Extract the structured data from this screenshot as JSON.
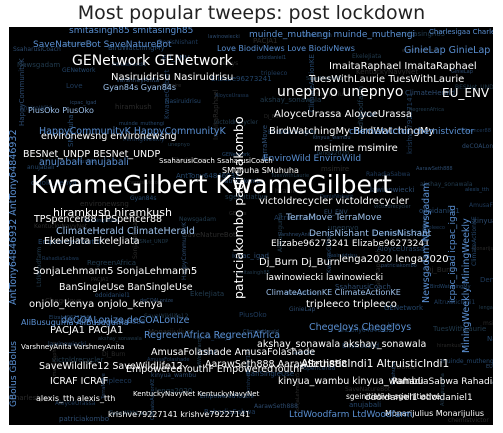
{
  "title": "Most popular tweeps: post lockdown",
  "colors": {
    "background": "#000000",
    "white": "#ffffff",
    "blue": "#5a8fd1",
    "light_blue": "#9cc0ea",
    "teal": "#4aa3a3"
  },
  "words": [
    {
      "text": "KwameGilbert KwameGilbert",
      "color": "white"
    },
    {
      "text": "GENetwork GENetwork",
      "color": "white"
    },
    {
      "text": "hiramkush hiramkush",
      "color": "white"
    },
    {
      "text": "unepnyo unepnyo",
      "color": "white"
    },
    {
      "text": "patriciakombo patriciakombo",
      "color": "white"
    },
    {
      "text": "AltruisticIndi1 AltruisticIndi1",
      "color": "white"
    },
    {
      "text": "Nasiruidrisu Nasiruidrisu",
      "color": "white"
    },
    {
      "text": "ImaitaRaphael ImaitaRaphael",
      "color": "white"
    },
    {
      "text": "TuesWithLaurie TuesWithLaurie",
      "color": "white"
    },
    {
      "text": "EU_ENV EU_ENV",
      "color": "white"
    },
    {
      "text": "AloyceUrassa AloyceUrassa",
      "color": "white"
    },
    {
      "text": "BirdWatchingMy BirdWatchingMy",
      "color": "white"
    },
    {
      "text": "msimire msimire",
      "color": "white"
    },
    {
      "text": "victoldrecycler victoldrecycler",
      "color": "white"
    },
    {
      "text": "TerraMove TerraMove",
      "color": "light_blue"
    },
    {
      "text": "DenisNishant DenisNishant",
      "color": "light_blue"
    },
    {
      "text": "Elizabe96273241 Elizabe96273241",
      "color": "white"
    },
    {
      "text": "Dj_Burn Dj_Burn",
      "color": "white"
    },
    {
      "text": "lenga2020 lenga2020",
      "color": "white"
    },
    {
      "text": "lawinowiecki lawinowiecki",
      "color": "white"
    },
    {
      "text": "tripleeco tripleeco",
      "color": "white"
    },
    {
      "text": "ClimateActionKE ClimateActionKE",
      "color": "light_blue"
    },
    {
      "text": "ChegeJoys ChegeJoys",
      "color": "blue"
    },
    {
      "text": "akshay_sonawala akshay_sonawala",
      "color": "white"
    },
    {
      "text": "kinyua_wambu kinyua_wambu",
      "color": "white"
    },
    {
      "text": "RahadiaSabwa RahadiaSabwa",
      "color": "white"
    },
    {
      "text": "odoidaniel1 odoidaniel1",
      "color": "white"
    },
    {
      "text": "Monarijulius Monarijulius",
      "color": "white"
    },
    {
      "text": "LtdWoodfarm LtdWoodfarm",
      "color": "blue"
    },
    {
      "text": "AarawSeth888 AarawSeth888",
      "color": "white"
    },
    {
      "text": "AmusaFolashade AmusaFolashade",
      "color": "white"
    },
    {
      "text": "EmpoweredYouthF EmpoweredYouthF",
      "color": "white"
    },
    {
      "text": "PACJA1 PACJA1",
      "color": "white"
    },
    {
      "text": "SaveWildlife12 SaveWildlife12",
      "color": "white"
    },
    {
      "text": "ICRAF ICRAF",
      "color": "white"
    },
    {
      "text": "krishve79227141 krishve79227141",
      "color": "white"
    },
    {
      "text": "alexis_tth alexis_tth",
      "color": "white"
    },
    {
      "text": "KentuckyNavyNet KentuckyNavyNet",
      "color": "white"
    },
    {
      "text": "RegreenAfrica RegreenAfrica",
      "color": "blue"
    },
    {
      "text": "deCOALonize deCOALonize",
      "color": "blue"
    },
    {
      "text": "onjolo_kenya onjolo_kenya",
      "color": "white"
    },
    {
      "text": "BanSingleUse BanSingleUse",
      "color": "white"
    },
    {
      "text": "SonjaLehmann5 SonjaLehmann5",
      "color": "white"
    },
    {
      "text": "EkeleJiata EkeleJiata",
      "color": "white"
    },
    {
      "text": "ClimateHerald ClimateHerald",
      "color": "light_blue"
    },
    {
      "text": "TPSpencer88 TPSpencer88",
      "color": "white"
    },
    {
      "text": "anujabali anujabali",
      "color": "blue"
    },
    {
      "text": "environewsng environewsng",
      "color": "white"
    },
    {
      "text": "BESNet_UNDP BESNet_UNDP",
      "color": "white"
    },
    {
      "text": "HappyCommunityK HappyCommunityK",
      "color": "blue"
    },
    {
      "text": "PiusOko PiusOko",
      "color": "light_blue"
    },
    {
      "text": "Gyan84s Gyan84s",
      "color": "light_blue"
    },
    {
      "text": "SaveNatureBot SaveNatureBot",
      "color": "blue"
    },
    {
      "text": "smitasingh85 smitasingh85",
      "color": "blue"
    },
    {
      "text": "GinieLap GinieLap",
      "color": "blue"
    },
    {
      "text": "EnviroWild EnviroWild",
      "color": "blue"
    },
    {
      "text": "SMuhuha SMuhuha",
      "color": "white"
    },
    {
      "text": "chemistvictor chemistvictor",
      "color": "blue"
    },
    {
      "text": "Newsgadam Newsgadam",
      "color": "blue"
    },
    {
      "text": "icpac_igad icpac_igad",
      "color": "blue"
    },
    {
      "text": "MiningWeekly MiningWeekly",
      "color": "blue"
    },
    {
      "text": "AntTony64846932 AntTony64846932",
      "color": "blue"
    },
    {
      "text": "GBolus GBolus",
      "color": "blue"
    },
    {
      "text": "AliBusuguma AliBusuguma",
      "color": "blue"
    },
    {
      "text": "SsaharusiCoach SsaharusiCoach",
      "color": "white"
    },
    {
      "text": "Love BiodivNews Love BiodivNews",
      "color": "blue"
    },
    {
      "text": "muinde_muthengi muinde_muthengi",
      "color": "blue"
    },
    {
      "text": "Charlesigaa Charlesigaa",
      "color": "blue"
    },
    {
      "text": "sgeinitiative sgeinitiative",
      "color": "white"
    },
    {
      "text": "VarshneyAnita VarshneyAnita",
      "color": "white"
    }
  ]
}
